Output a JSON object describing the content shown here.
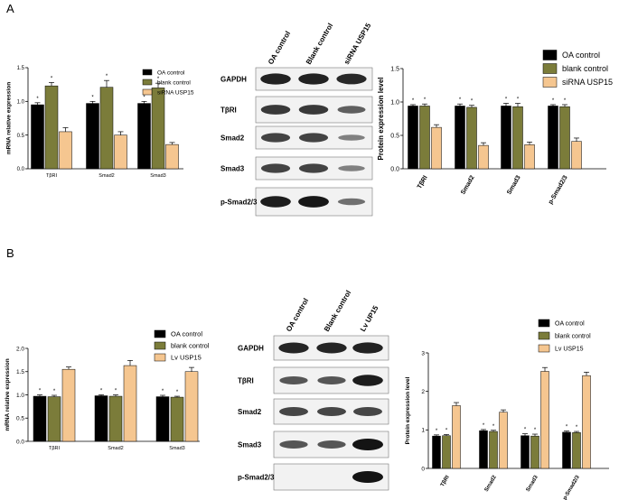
{
  "panels": {
    "a": "A",
    "b": "B"
  },
  "colors": {
    "oa": "#000000",
    "blank": "#7b7c3a",
    "treat": "#f5c690",
    "band": "#141414"
  },
  "chart_data": [
    {
      "id": "A-left",
      "type": "bar",
      "ylabel": "mRNA relative expression",
      "ylim": [
        0,
        1.5
      ],
      "yticks": [
        "0.0",
        "0.5",
        "1.0",
        "1.5"
      ],
      "categories": [
        "TβRI",
        "Smad2",
        "Smad3"
      ],
      "legend": [
        "OA control",
        "blank control",
        "siRNA USP15"
      ],
      "series": [
        {
          "name": "OA control",
          "values": [
            0.95,
            0.97,
            0.97
          ],
          "err": [
            0.03,
            0.03,
            0.03
          ],
          "star": true
        },
        {
          "name": "blank control",
          "values": [
            1.23,
            1.21,
            1.2
          ],
          "err": [
            0.05,
            0.1,
            0.07
          ],
          "star": true
        },
        {
          "name": "siRNA USP15",
          "values": [
            0.55,
            0.5,
            0.36
          ],
          "err": [
            0.06,
            0.05,
            0.03
          ],
          "star": false
        }
      ]
    },
    {
      "id": "A-right",
      "type": "bar",
      "ylabel": "Protein expression level",
      "ylim": [
        0,
        1.5
      ],
      "yticks": [
        "0.0",
        "0.5",
        "1.0",
        "1.5"
      ],
      "categories": [
        "TβRI",
        "Smad2",
        "Smad3",
        "p-Smad2/3"
      ],
      "legend": [
        "OA control",
        "blank control",
        "siRNA USP15"
      ],
      "series": [
        {
          "name": "OA control",
          "values": [
            0.94,
            0.94,
            0.94,
            0.94
          ],
          "err": [
            0.02,
            0.03,
            0.04,
            0.02
          ],
          "star": true
        },
        {
          "name": "blank control",
          "values": [
            0.94,
            0.92,
            0.93,
            0.93
          ],
          "err": [
            0.03,
            0.03,
            0.05,
            0.03
          ],
          "star": true
        },
        {
          "name": "siRNA USP15",
          "values": [
            0.62,
            0.35,
            0.36,
            0.41
          ],
          "err": [
            0.04,
            0.04,
            0.04,
            0.05
          ],
          "star": false
        }
      ]
    },
    {
      "id": "B-left",
      "type": "bar",
      "ylabel": "mRNA relative expression",
      "ylim": [
        0,
        2.0
      ],
      "yticks": [
        "0.0",
        "0.5",
        "1.0",
        "1.5",
        "2.0"
      ],
      "categories": [
        "TβRI",
        "Smad2",
        "Smad3"
      ],
      "legend": [
        "OA control",
        "blank control",
        "Lv USP15"
      ],
      "series": [
        {
          "name": "OA control",
          "values": [
            0.97,
            0.98,
            0.96
          ],
          "err": [
            0.03,
            0.02,
            0.03
          ],
          "star": true
        },
        {
          "name": "blank control",
          "values": [
            0.96,
            0.97,
            0.95
          ],
          "err": [
            0.03,
            0.03,
            0.02
          ],
          "star": true
        },
        {
          "name": "Lv USP15",
          "values": [
            1.55,
            1.63,
            1.5
          ],
          "err": [
            0.05,
            0.11,
            0.09
          ],
          "star": false
        }
      ]
    },
    {
      "id": "B-right",
      "type": "bar",
      "ylabel": "Protein expression level",
      "ylim": [
        0,
        3
      ],
      "yticks": [
        "0",
        "1",
        "2",
        "3"
      ],
      "categories": [
        "TβRI",
        "Smad2",
        "Smad3",
        "p-Smad2/3"
      ],
      "legend": [
        "OA control",
        "blank control",
        "Lv USP15"
      ],
      "series": [
        {
          "name": "OA control",
          "values": [
            0.84,
            0.98,
            0.85,
            0.94
          ],
          "err": [
            0.03,
            0.03,
            0.05,
            0.03
          ],
          "star": true
        },
        {
          "name": "blank control",
          "values": [
            0.85,
            0.96,
            0.84,
            0.93
          ],
          "err": [
            0.03,
            0.03,
            0.05,
            0.03
          ],
          "star": true
        },
        {
          "name": "Lv USP15",
          "values": [
            1.63,
            1.46,
            2.52,
            2.41
          ],
          "err": [
            0.08,
            0.06,
            0.1,
            0.09
          ],
          "star": false
        }
      ]
    }
  ],
  "blots": [
    {
      "id": "blot-A",
      "columns": [
        "OA control",
        "Blank control",
        "siRNA USP15"
      ],
      "rows": [
        {
          "label": "GAPDH",
          "bands": [
            0.92,
            0.92,
            0.88
          ]
        },
        {
          "label": "TβRI",
          "bands": [
            0.78,
            0.78,
            0.55
          ]
        },
        {
          "label": "Smad2",
          "bands": [
            0.72,
            0.72,
            0.35
          ]
        },
        {
          "label": "Smad3",
          "bands": [
            0.72,
            0.72,
            0.35
          ]
        },
        {
          "label": "p-Smad2/3",
          "bands": [
            0.95,
            0.98,
            0.45
          ]
        }
      ]
    },
    {
      "id": "blot-B",
      "columns": [
        "OA control",
        "Blank control",
        "Lv UP15"
      ],
      "rows": [
        {
          "label": "GAPDH",
          "bands": [
            0.9,
            0.9,
            0.92
          ]
        },
        {
          "label": "TβRI",
          "bands": [
            0.6,
            0.6,
            0.95
          ]
        },
        {
          "label": "Smad2",
          "bands": [
            0.7,
            0.7,
            0.7
          ]
        },
        {
          "label": "Smad3",
          "bands": [
            0.6,
            0.6,
            1.0
          ]
        },
        {
          "label": "p-Smad2/3",
          "bands": [
            0.0,
            0.0,
            1.0
          ]
        }
      ]
    }
  ]
}
